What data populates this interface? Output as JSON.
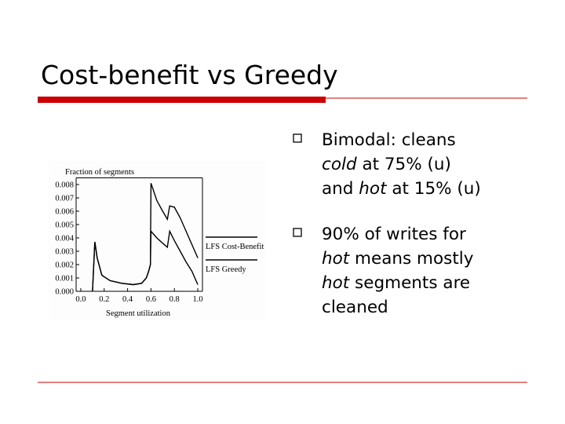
{
  "title": "Cost-benefit vs Greedy",
  "bullets": [
    {
      "lines": [
        [
          {
            "text": "Bimodal: cleans"
          }
        ],
        [
          {
            "text": "cold",
            "italic": true
          },
          {
            "text": " at 75% (u)"
          }
        ],
        [
          {
            "text": "and "
          },
          {
            "text": "hot",
            "italic": true
          },
          {
            "text": " at 15% (u)"
          }
        ]
      ]
    },
    {
      "lines": [
        [
          {
            "text": "90% of writes for"
          }
        ],
        [
          {
            "text": "hot",
            "italic": true
          },
          {
            "text": " means mostly"
          }
        ],
        [
          {
            "text": "hot",
            "italic": true
          },
          {
            "text": " segments are"
          }
        ],
        [
          {
            "text": "cleaned"
          }
        ]
      ]
    }
  ],
  "chart_data": {
    "type": "line",
    "y_label": "Fraction of segments",
    "x_label": "Segment utilization",
    "x": [
      0.1,
      0.12,
      0.14,
      0.18,
      0.25,
      0.35,
      0.45,
      0.52,
      0.56,
      0.58,
      0.595,
      0.6,
      0.65,
      0.7,
      0.74,
      0.76,
      0.8,
      0.85,
      0.9,
      0.95,
      1.0
    ],
    "series": [
      {
        "name": "LFS Cost-Benefit",
        "color": "#000000",
        "values": [
          0,
          0.0037,
          0.0025,
          0.0012,
          0.0008,
          0.0006,
          0.0005,
          0.0006,
          0.001,
          0.0015,
          0.002,
          0.0081,
          0.0068,
          0.006,
          0.0054,
          0.0064,
          0.0063,
          0.0055,
          0.0045,
          0.0035,
          0.0025
        ]
      },
      {
        "name": "LFS Greedy",
        "color": "#000000",
        "values": [
          0,
          0.0037,
          0.0025,
          0.0012,
          0.0008,
          0.0006,
          0.0005,
          0.0006,
          0.001,
          0.0015,
          0.002,
          0.0045,
          0.004,
          0.0036,
          0.0033,
          0.0045,
          0.0038,
          0.003,
          0.0022,
          0.0015,
          0.0005
        ]
      }
    ],
    "xlim": [
      -0.04,
      1.04
    ],
    "ylim": [
      0,
      0.0085
    ],
    "xticks": [
      {
        "value": 0,
        "label": "0.0"
      },
      0.2,
      0.4,
      0.6,
      0.8,
      {
        "value": 1,
        "label": "1.0"
      }
    ],
    "yticks": [
      {
        "value": 0,
        "label": "0.000"
      },
      {
        "value": 0.001,
        "label": "0.001"
      },
      {
        "value": 0.002,
        "label": "0.002"
      },
      {
        "value": 0.003,
        "label": "0.003"
      },
      {
        "value": 0.004,
        "label": "0.004"
      },
      {
        "value": 0.005,
        "label": "0.005"
      },
      {
        "value": 0.006,
        "label": "0.006"
      },
      {
        "value": 0.007,
        "label": "0.007"
      },
      {
        "value": 0.008,
        "label": "0.008"
      }
    ]
  }
}
